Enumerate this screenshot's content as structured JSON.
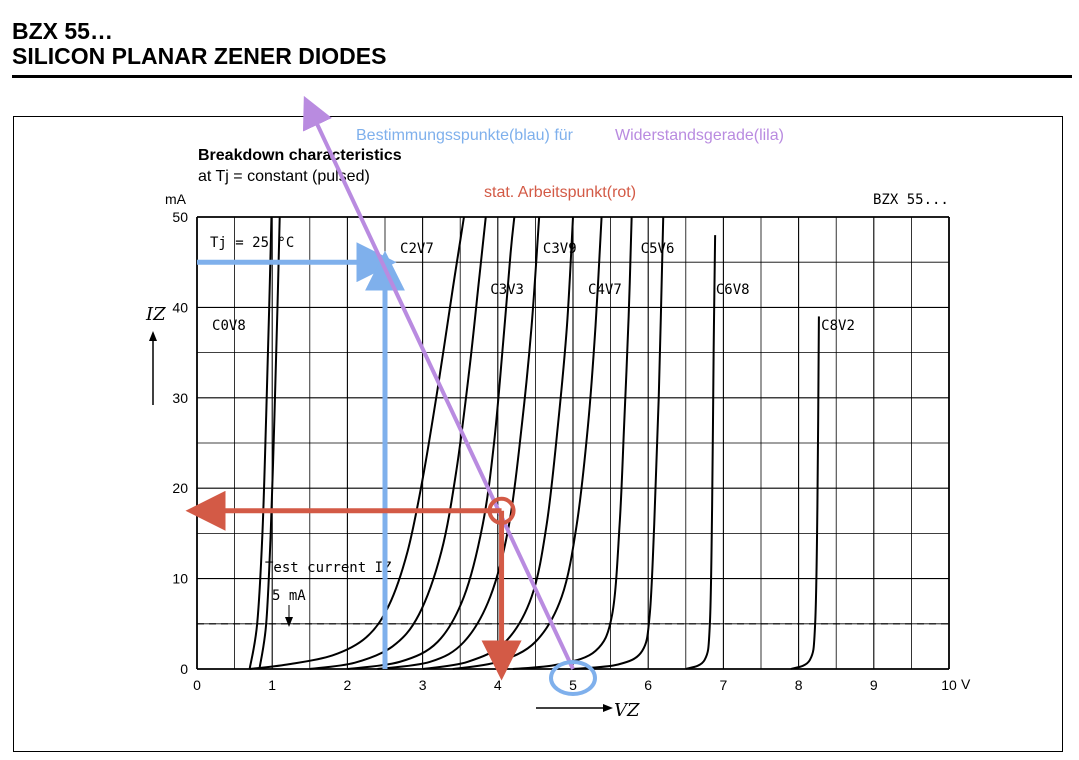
{
  "document": {
    "title_line1": "BZX 55…",
    "title_line2": "SILICON PLANAR ZENER DIODES"
  },
  "chart_data": {
    "type": "line",
    "title": "Breakdown characteristics",
    "subtitle": "at Tj = constant (pulsed)",
    "series_tag": "BZX 55...",
    "condition": "Tj = 25 °C",
    "xlabel": "VZ",
    "xunit": "V",
    "ylabel": "IZ",
    "yunit": "mA",
    "xlim": [
      0,
      10
    ],
    "ylim": [
      0,
      50
    ],
    "x_ticks": [
      "0",
      "1",
      "2",
      "3",
      "4",
      "5",
      "6",
      "7",
      "8",
      "9",
      "10"
    ],
    "y_ticks": [
      "0",
      "10",
      "20",
      "30",
      "40",
      "50"
    ],
    "grid": true,
    "test_current": {
      "label": "Test current IZ",
      "value_label": "5 mA",
      "value": 5
    },
    "series": [
      {
        "name": "C0V8",
        "curves": [
          {
            "points": [
              [
                0.7,
                0
              ],
              [
                0.8,
                5
              ],
              [
                0.87,
                15
              ],
              [
                0.92,
                28
              ],
              [
                0.96,
                40
              ],
              [
                0.99,
                50
              ]
            ]
          },
          {
            "points": [
              [
                0.83,
                0
              ],
              [
                0.92,
                5
              ],
              [
                0.98,
                15
              ],
              [
                1.03,
                28
              ],
              [
                1.07,
                40
              ],
              [
                1.1,
                50
              ]
            ]
          }
        ]
      },
      {
        "name": "C2V7",
        "curves": [
          {
            "points": [
              [
                0.7,
                0
              ],
              [
                1.2,
                0.5
              ],
              [
                1.8,
                1.5
              ],
              [
                2.25,
                3.5
              ],
              [
                2.55,
                7
              ],
              [
                2.8,
                13
              ],
              [
                3.0,
                21
              ],
              [
                3.2,
                31
              ],
              [
                3.4,
                42
              ],
              [
                3.55,
                50
              ]
            ]
          },
          {
            "points": [
              [
                1.5,
                0
              ],
              [
                2.1,
                0.7
              ],
              [
                2.6,
                2.5
              ],
              [
                2.95,
                6
              ],
              [
                3.25,
                13
              ],
              [
                3.45,
                22
              ],
              [
                3.62,
                33
              ],
              [
                3.75,
                43
              ],
              [
                3.84,
                50
              ]
            ]
          }
        ]
      },
      {
        "name": "C3V3",
        "curves": [
          {
            "points": [
              [
                2.0,
                0
              ],
              [
                2.7,
                0.8
              ],
              [
                3.2,
                3
              ],
              [
                3.55,
                8
              ],
              [
                3.8,
                16
              ],
              [
                3.95,
                25
              ],
              [
                4.07,
                36
              ],
              [
                4.17,
                46
              ],
              [
                4.22,
                50
              ]
            ]
          },
          {
            "points": [
              [
                2.4,
                0
              ],
              [
                3.1,
                0.8
              ],
              [
                3.55,
                3
              ],
              [
                3.9,
                8
              ],
              [
                4.15,
                16
              ],
              [
                4.32,
                27
              ],
              [
                4.45,
                38
              ],
              [
                4.55,
                50
              ]
            ]
          }
        ]
      },
      {
        "name": "C3V9",
        "curves": [
          {
            "points": [
              [
                3.0,
                0
              ],
              [
                3.6,
                0.8
              ],
              [
                4.1,
                3
              ],
              [
                4.45,
                8
              ],
              [
                4.65,
                16
              ],
              [
                4.8,
                27
              ],
              [
                4.92,
                38
              ],
              [
                5.0,
                50
              ]
            ]
          }
        ]
      },
      {
        "name": "C4V7",
        "curves": [
          {
            "points": [
              [
                3.4,
                0
              ],
              [
                4.0,
                0.8
              ],
              [
                4.5,
                3
              ],
              [
                4.85,
                8
              ],
              [
                5.05,
                16
              ],
              [
                5.2,
                27
              ],
              [
                5.3,
                38
              ],
              [
                5.38,
                50
              ]
            ]
          }
        ]
      },
      {
        "name": "C5V6",
        "curves": [
          {
            "points": [
              [
                4.2,
                0
              ],
              [
                4.8,
                0.5
              ],
              [
                5.3,
                2
              ],
              [
                5.52,
                6
              ],
              [
                5.62,
                16
              ],
              [
                5.68,
                27
              ],
              [
                5.74,
                39
              ],
              [
                5.78,
                50
              ]
            ]
          },
          {
            "points": [
              [
                5.0,
                0
              ],
              [
                5.6,
                0.5
              ],
              [
                5.92,
                2
              ],
              [
                6.02,
                6
              ],
              [
                6.08,
                16
              ],
              [
                6.14,
                30
              ],
              [
                6.2,
                50
              ]
            ]
          }
        ]
      },
      {
        "name": "C6V8",
        "curves": [
          {
            "points": [
              [
                6.5,
                0
              ],
              [
                6.75,
                1
              ],
              [
                6.82,
                5
              ],
              [
                6.85,
                18
              ],
              [
                6.87,
                35
              ],
              [
                6.89,
                48
              ]
            ]
          }
        ]
      },
      {
        "name": "C8V2",
        "curves": [
          {
            "points": [
              [
                7.9,
                0
              ],
              [
                8.15,
                1
              ],
              [
                8.22,
                5
              ],
              [
                8.25,
                18
              ],
              [
                8.27,
                39
              ]
            ]
          }
        ]
      }
    ],
    "overlay": {
      "legend_blue": "Bestimmungsspunkte(blau) für",
      "legend_lila": "Widerstandsgerade(lila)",
      "legend_red": "stat. Arbeitspunkt(rot)",
      "load_line": {
        "from": [
          5.0,
          0
        ],
        "to": [
          1.5,
          62
        ],
        "color": "#b98be0"
      },
      "blue_point": {
        "x": 2.5,
        "y": 45,
        "color": "#7fb0ec"
      },
      "blue_circle": {
        "x": 5.0,
        "y": 0
      },
      "red_point": {
        "x": 4.05,
        "y": 17.5,
        "color": "#d35a46"
      }
    }
  }
}
